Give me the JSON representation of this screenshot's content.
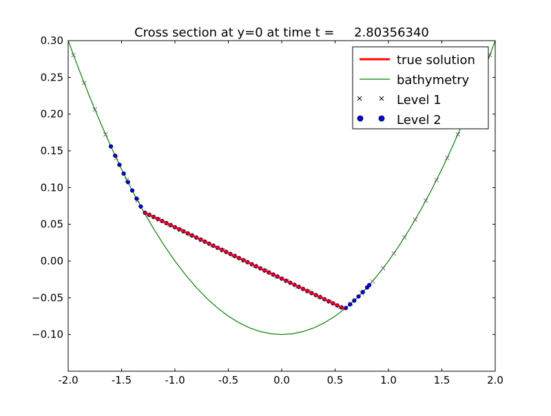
{
  "chart_data": {
    "type": "line",
    "title": "Cross section at y=0 at time t =     2.80356340",
    "xlabel": "",
    "ylabel": "",
    "xlim": [
      -2.0,
      2.0
    ],
    "ylim": [
      -0.15,
      0.3
    ],
    "xticks": [
      "-2.0",
      "-1.5",
      "-1.0",
      "-0.5",
      "0.0",
      "0.5",
      "1.0",
      "1.5",
      "2.0"
    ],
    "xtick_values": [
      -2.0,
      -1.5,
      -1.0,
      -0.5,
      0.0,
      0.5,
      1.0,
      1.5,
      2.0
    ],
    "yticks": [
      "−0.10",
      "−0.05",
      "0.00",
      "0.05",
      "0.10",
      "0.15",
      "0.20",
      "0.25",
      "0.30"
    ],
    "ytick_values": [
      -0.1,
      -0.05,
      0.0,
      0.05,
      0.1,
      0.15,
      0.2,
      0.25,
      0.3
    ],
    "grid": false,
    "legend_position": "top-right",
    "series": [
      {
        "name": "true solution",
        "style": "line",
        "color": "#ff0000",
        "x": [
          -1.289,
          0.589
        ],
        "y": [
          0.0662,
          -0.0652
        ]
      },
      {
        "name": "bathymetry",
        "style": "line",
        "color": "#008000",
        "x": [
          -2.0,
          -1.9,
          -1.8,
          -1.7,
          -1.6,
          -1.5,
          -1.4,
          -1.3,
          -1.2,
          -1.1,
          -1.0,
          -0.9,
          -0.8,
          -0.7,
          -0.6,
          -0.5,
          -0.4,
          -0.3,
          -0.2,
          -0.1,
          0.0,
          0.1,
          0.2,
          0.3,
          0.4,
          0.5,
          0.6,
          0.7,
          0.8,
          0.9,
          1.0,
          1.1,
          1.2,
          1.3,
          1.4,
          1.5,
          1.6,
          1.7,
          1.8,
          1.9,
          2.0
        ],
        "y": [
          0.3,
          0.261,
          0.224,
          0.189,
          0.156,
          0.125,
          0.096,
          0.069,
          0.044,
          0.021,
          0.0,
          -0.019,
          -0.036,
          -0.051,
          -0.064,
          -0.075,
          -0.084,
          -0.091,
          -0.096,
          -0.099,
          -0.1,
          -0.099,
          -0.096,
          -0.091,
          -0.084,
          -0.075,
          -0.064,
          -0.051,
          -0.036,
          -0.019,
          0.0,
          0.021,
          0.044,
          0.069,
          0.096,
          0.125,
          0.156,
          0.189,
          0.224,
          0.261,
          0.3
        ]
      },
      {
        "name": "Level 1",
        "style": "x-marker",
        "color": "#000000",
        "x": [
          -1.95,
          -1.85,
          -1.75,
          -1.65,
          -1.55,
          -1.45,
          -1.35,
          -1.25,
          -1.15,
          -1.05,
          -0.95,
          -0.85,
          -0.75,
          -0.65,
          -0.55,
          -0.45,
          -0.35,
          -0.25,
          -0.15,
          -0.05,
          0.05,
          0.15,
          0.25,
          0.35,
          0.45,
          0.55,
          0.65,
          0.75,
          0.85,
          0.95,
          1.05,
          1.15,
          1.25,
          1.35,
          1.45,
          1.55,
          1.65,
          1.75,
          1.85,
          1.95
        ],
        "y": [
          0.2803,
          0.2423,
          0.2063,
          0.1723,
          0.1403,
          0.1103,
          0.0823,
          0.0635,
          0.0565,
          0.0495,
          0.0425,
          0.0355,
          0.0285,
          0.0215,
          0.0145,
          0.0075,
          0.0005,
          -0.0065,
          -0.0135,
          -0.0205,
          -0.0275,
          -0.0345,
          -0.0415,
          -0.0485,
          -0.0555,
          -0.0625,
          -0.0578,
          -0.0438,
          -0.0278,
          -0.0098,
          0.0103,
          0.0323,
          0.0563,
          0.0823,
          0.1103,
          0.1403,
          0.1723,
          0.2063,
          0.2423,
          0.2803
        ]
      },
      {
        "name": "Level 2",
        "style": "dot-marker",
        "color": "#0000ff",
        "x": [
          -1.6,
          -1.56,
          -1.52,
          -1.48,
          -1.44,
          -1.4,
          -1.36,
          -1.32,
          -1.28,
          -1.24,
          -1.2,
          -1.16,
          -1.12,
          -1.08,
          -1.04,
          -1.0,
          -0.96,
          -0.92,
          -0.88,
          -0.84,
          -0.8,
          -0.76,
          -0.72,
          -0.68,
          -0.64,
          -0.6,
          -0.56,
          -0.52,
          -0.48,
          -0.44,
          -0.4,
          -0.36,
          -0.32,
          -0.28,
          -0.24,
          -0.2,
          -0.16,
          -0.12,
          -0.08,
          -0.04,
          0.0,
          0.04,
          0.08,
          0.12,
          0.16,
          0.2,
          0.24,
          0.28,
          0.32,
          0.36,
          0.4,
          0.44,
          0.48,
          0.52,
          0.56,
          0.6,
          0.64,
          0.68,
          0.72,
          0.76,
          0.8,
          0.82
        ],
        "y": [
          0.156,
          0.1434,
          0.131,
          0.119,
          0.1074,
          0.096,
          0.085,
          0.0742,
          0.0656,
          0.0628,
          0.06,
          0.0572,
          0.0544,
          0.0516,
          0.0488,
          0.046,
          0.0432,
          0.0404,
          0.0376,
          0.0348,
          0.032,
          0.0292,
          0.0264,
          0.0236,
          0.0208,
          0.018,
          0.0152,
          0.0124,
          0.0096,
          0.0068,
          0.004,
          0.0012,
          -0.0016,
          -0.0044,
          -0.0072,
          -0.01,
          -0.0128,
          -0.0156,
          -0.0184,
          -0.0212,
          -0.024,
          -0.0268,
          -0.0296,
          -0.0324,
          -0.0352,
          -0.038,
          -0.0408,
          -0.0436,
          -0.0464,
          -0.0492,
          -0.052,
          -0.0548,
          -0.0576,
          -0.0604,
          -0.0632,
          -0.064,
          -0.059,
          -0.0538,
          -0.0482,
          -0.0422,
          -0.036,
          -0.0328
        ]
      }
    ]
  }
}
